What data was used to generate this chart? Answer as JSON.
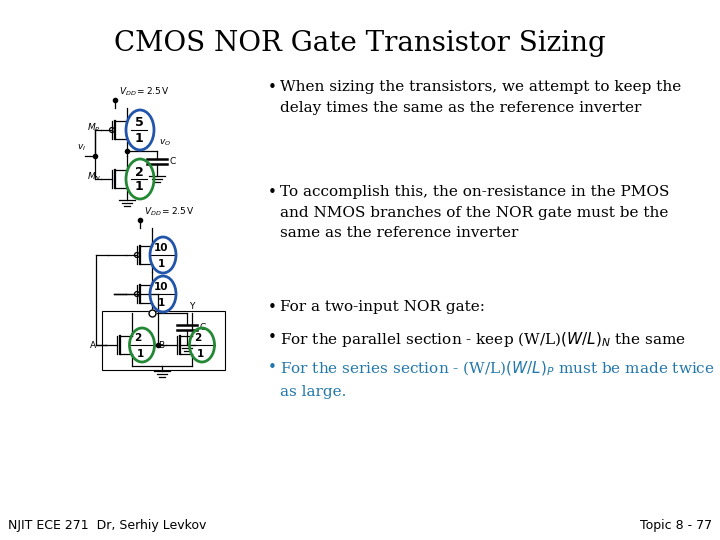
{
  "title": "CMOS NOR Gate Transistor Sizing",
  "title_fontsize": 20,
  "title_color": "#000000",
  "background_color": "#ffffff",
  "bullet1": "When sizing the transistors, we attempt to keep the\ndelay times the same as the reference inverter",
  "bullet2": "To accomplish this, the on-resistance in the PMOS\nand NMOS branches of the NOR gate must be the\nsame as the reference inverter",
  "bullet3": "For a two-input NOR gate:",
  "bullet4": "For the parallel section - keep (W/L)",
  "bullet4_sub": "N",
  "bullet4_post": " the same",
  "bullet5": "For the series section - (W/L)",
  "bullet5_sub": "P",
  "bullet5_post": " must be made twice\nas large.",
  "bullet_color": "#000000",
  "bullet5_color": "#2277aa",
  "text_fontsize": 11,
  "footer_left": "NJIT ECE 271  Dr, Serhiy Levkov",
  "footer_right": "Topic 8 - 77",
  "footer_fontsize": 9,
  "blue_color": "#2255aa",
  "green_color": "#228833"
}
